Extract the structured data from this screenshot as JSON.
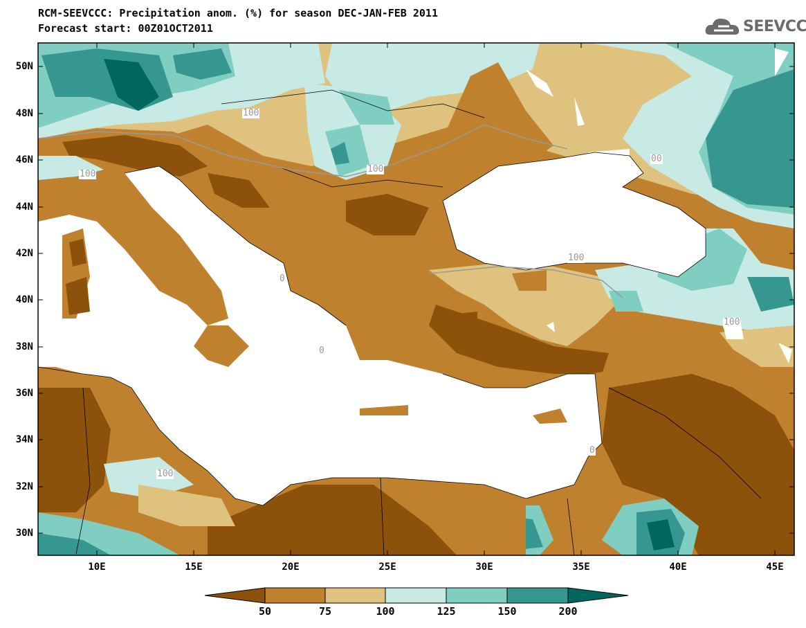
{
  "title": {
    "line1": "RCM-SEEVCCC: Precipitation anom. (%) for season DEC-JAN-FEB 2011",
    "line2": "Forecast start: 00Z01OCT2011"
  },
  "logo": {
    "text": "SEEVCCC"
  },
  "map": {
    "lat_labels": [
      "50N",
      "48N",
      "46N",
      "44N",
      "42N",
      "40N",
      "38N",
      "36N",
      "34N",
      "32N",
      "30N"
    ],
    "lon_labels": [
      "10E",
      "15E",
      "20E",
      "25E",
      "30E",
      "35E",
      "40E",
      "45E"
    ],
    "contour_labels": [
      "100",
      "100",
      "100",
      "100",
      "00",
      "100",
      "100",
      "0",
      "0",
      "0"
    ]
  },
  "colorbar": {
    "labels": [
      "50",
      "75",
      "100",
      "125",
      "150",
      "200"
    ],
    "colors": [
      "#8c510a",
      "#bf812d",
      "#dfc27d",
      "#c7eae5",
      "#80cdc1",
      "#35978f",
      "#01665e"
    ]
  },
  "colors": {
    "brown_dark": "#8c510a",
    "brown": "#bf812d",
    "tan": "#dfc27d",
    "mint_light": "#c7eae5",
    "teal_light": "#80cdc1",
    "teal": "#35978f",
    "teal_dark": "#01665e"
  }
}
